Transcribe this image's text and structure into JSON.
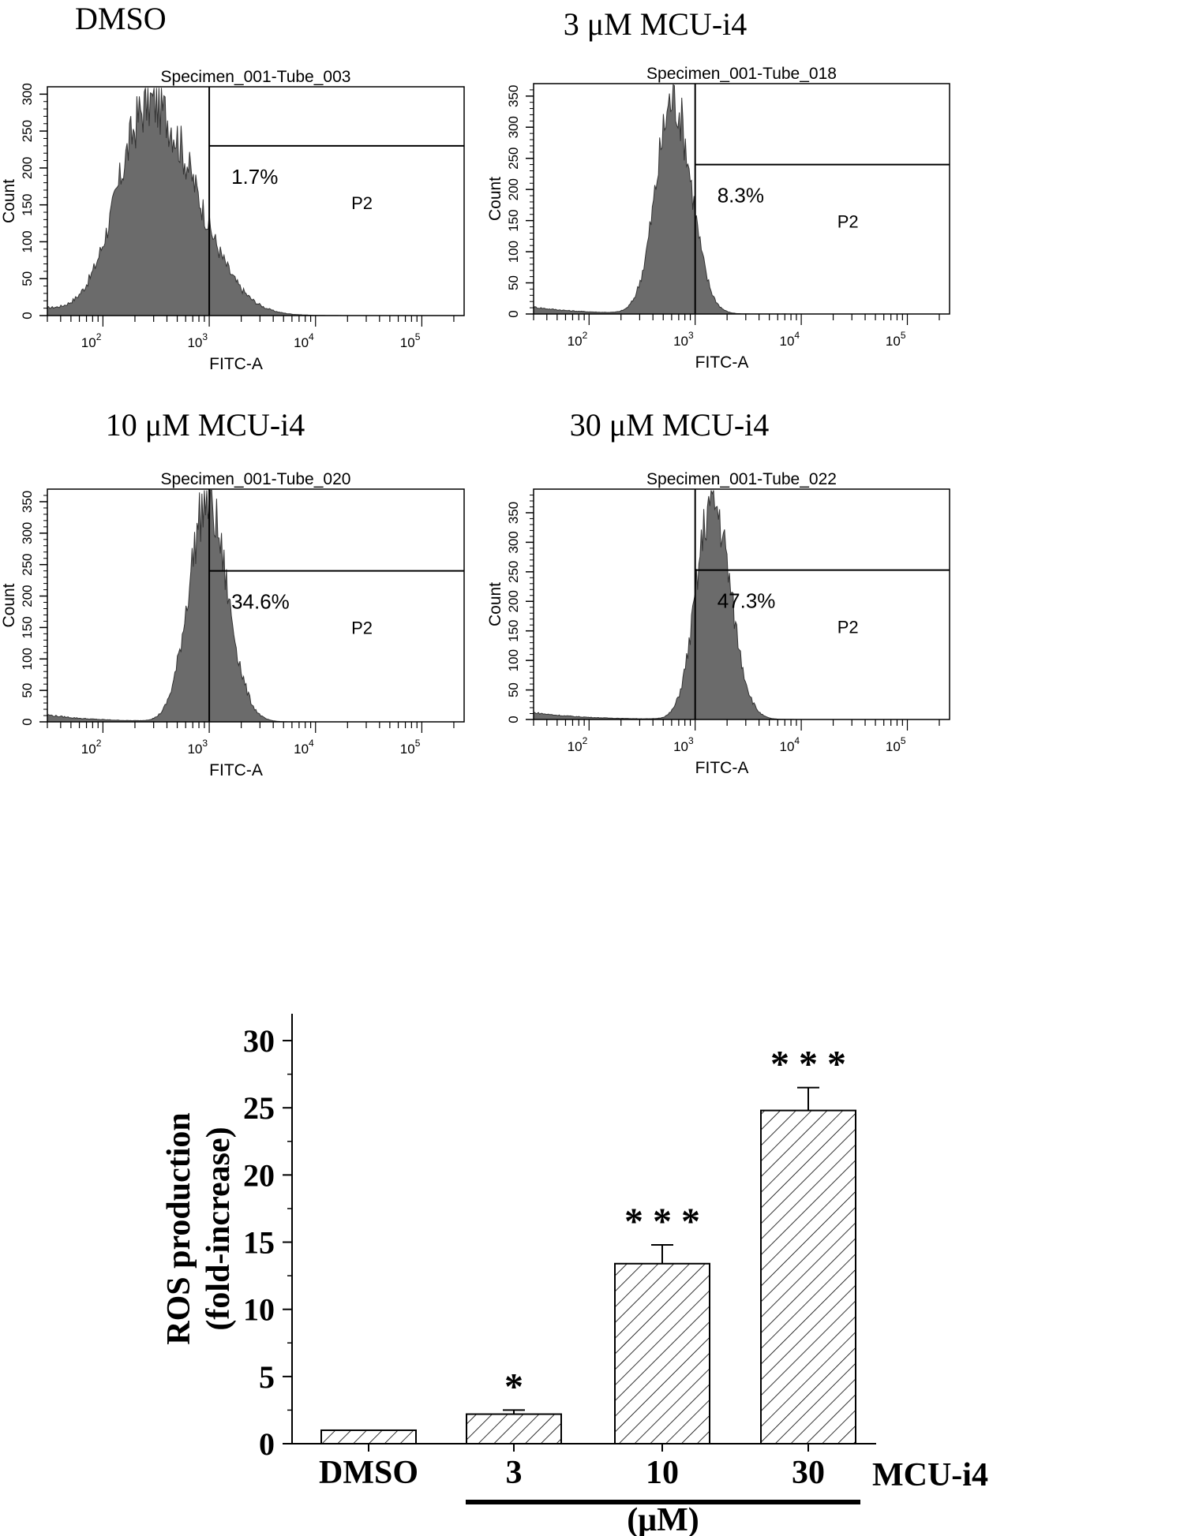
{
  "chart_data": [
    {
      "type": "histogram",
      "panel_title": "DMSO",
      "title": "Specimen_001-Tube_003",
      "xlabel": "FITC-A",
      "ylabel": "Count",
      "xscale": "log",
      "xlim": [
        30,
        250000
      ],
      "ylim": [
        0,
        310
      ],
      "yticks": [
        0,
        50,
        100,
        150,
        200,
        250,
        300
      ],
      "xticks": [
        "10^2",
        "10^3",
        "10^4",
        "10^5"
      ],
      "gate": {
        "name": "P2",
        "threshold": 1000,
        "percent": "1.7%",
        "hline": 230
      },
      "peak_x": 280,
      "peak_y": 288,
      "width_decades": 0.3,
      "tail_decades": 0.42
    },
    {
      "type": "histogram",
      "panel_title": "3 μM MCU-i4",
      "title": "Specimen_001-Tube_018",
      "xlabel": "FITC-A",
      "ylabel": "Count",
      "xscale": "log",
      "xlim": [
        30,
        250000
      ],
      "ylim": [
        0,
        370
      ],
      "yticks": [
        0,
        50,
        100,
        150,
        200,
        250,
        300,
        350
      ],
      "xticks": [
        "10^2",
        "10^3",
        "10^4",
        "10^5"
      ],
      "gate": {
        "name": "P2",
        "threshold": 1000,
        "percent": "8.3%",
        "hline": 240
      },
      "peak_x": 620,
      "peak_y": 345,
      "width_decades": 0.16,
      "tail_decades": 0.17
    },
    {
      "type": "histogram",
      "panel_title": "10 μM MCU-i4",
      "title": "Specimen_001-Tube_020",
      "xlabel": "FITC-A",
      "ylabel": "Count",
      "xscale": "log",
      "xlim": [
        30,
        250000
      ],
      "ylim": [
        0,
        370
      ],
      "yticks": [
        0,
        50,
        100,
        150,
        200,
        250,
        300,
        350
      ],
      "xticks": [
        "10^2",
        "10^3",
        "10^4",
        "10^5"
      ],
      "gate": {
        "name": "P2",
        "threshold": 1000,
        "percent": "34.6%",
        "hline": 240
      },
      "peak_x": 950,
      "peak_y": 350,
      "width_decades": 0.17,
      "tail_decades": 0.19
    },
    {
      "type": "histogram",
      "panel_title": "30 μM MCU-i4",
      "title": "Specimen_001-Tube_022",
      "xlabel": "FITC-A",
      "ylabel": "Count",
      "xscale": "log",
      "xlim": [
        30,
        250000
      ],
      "ylim": [
        0,
        390
      ],
      "yticks": [
        0,
        50,
        100,
        150,
        200,
        250,
        300,
        350
      ],
      "xticks": [
        "10^2",
        "10^3",
        "10^4",
        "10^5"
      ],
      "gate": {
        "name": "P2",
        "threshold": 1000,
        "percent": "47.3%",
        "hline": 253
      },
      "peak_x": 1450,
      "peak_y": 370,
      "width_decades": 0.15,
      "tail_decades": 0.17
    },
    {
      "type": "bar",
      "categories": [
        "DMSO",
        "3",
        "10",
        "30"
      ],
      "values": [
        1.0,
        2.2,
        13.4,
        24.8
      ],
      "errors": [
        0.0,
        0.3,
        1.4,
        1.7
      ],
      "significance": [
        "",
        "*",
        "* * *",
        "* * *"
      ],
      "ylabel": "ROS production (fold-increase)",
      "ylabel_lines": [
        "ROS production",
        "(fold-increase)"
      ],
      "xlabel_group": "MCU-i4",
      "unit_label": "(μM)",
      "ylim": [
        0,
        32
      ],
      "yticks": [
        0,
        5,
        10,
        15,
        20,
        25,
        30
      ]
    }
  ]
}
